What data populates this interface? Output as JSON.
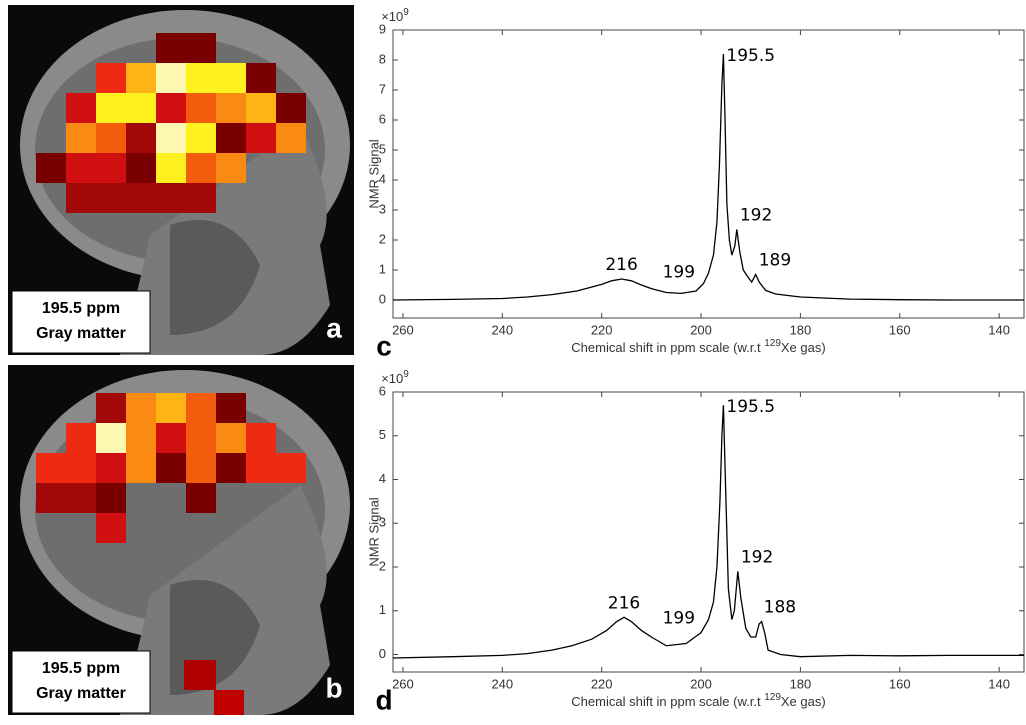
{
  "panels": [
    {
      "box": [
        "195.5 ppm",
        "Gray matter"
      ],
      "letter": "a"
    },
    {
      "box": [
        "195.5 ppm",
        "Gray matter"
      ],
      "letter": "b"
    }
  ],
  "chart_data": [
    {
      "type": "line",
      "letter": "c",
      "ylabel": "NMR Signal",
      "y_multiplier": {
        "base": "×10",
        "exponent": "9"
      },
      "xlabel": {
        "before": "Chemical shift in ppm scale (w.r.t ",
        "sup": "129",
        "after": "Xe gas)"
      },
      "xlim": [
        262,
        135
      ],
      "ylim": [
        -0.6,
        9
      ],
      "xticks": [
        260,
        240,
        220,
        200,
        180,
        160,
        140
      ],
      "yticks": [
        0,
        1,
        2,
        3,
        4,
        5,
        6,
        7,
        8,
        9
      ],
      "color": "#000000",
      "x": [
        262,
        250,
        240,
        235,
        230,
        225,
        220,
        218,
        216,
        214,
        212,
        210,
        207,
        204,
        201,
        199.5,
        198.5,
        197.5,
        196.8,
        196.3,
        195.8,
        195.5,
        195.2,
        194.8,
        194.3,
        193.8,
        193.2,
        192.8,
        192.2,
        191.5,
        190.5,
        189.8,
        189,
        188.3,
        187,
        185,
        180,
        170,
        160,
        150,
        140,
        135
      ],
      "values": [
        0,
        0.02,
        0.05,
        0.1,
        0.18,
        0.3,
        0.52,
        0.64,
        0.7,
        0.64,
        0.5,
        0.38,
        0.25,
        0.22,
        0.3,
        0.55,
        0.9,
        1.5,
        2.6,
        4.5,
        7.2,
        8.2,
        6.2,
        3.2,
        2.0,
        1.5,
        1.8,
        2.35,
        1.6,
        1.0,
        0.75,
        0.6,
        0.85,
        0.6,
        0.32,
        0.2,
        0.1,
        0.03,
        0.01,
        0,
        0,
        0
      ],
      "annotations": [
        {
          "text": "216",
          "x": 216,
          "y": 0.7
        },
        {
          "text": "199",
          "x": 200,
          "y": 0.45
        },
        {
          "text": "195.5",
          "x": 195.5,
          "y": 8.2
        },
        {
          "text": "192",
          "x": 192.8,
          "y": 2.35
        },
        {
          "text": "189",
          "x": 189,
          "y": 0.85
        }
      ]
    },
    {
      "type": "line",
      "letter": "d",
      "ylabel": "NMR Signal",
      "y_multiplier": {
        "base": "×10",
        "exponent": "9"
      },
      "xlabel": {
        "before": "Chemical shift in ppm scale (w.r.t ",
        "sup": "129",
        "after": "Xe gas)"
      },
      "xlim": [
        262,
        135
      ],
      "ylim": [
        -0.4,
        6
      ],
      "xticks": [
        260,
        240,
        220,
        200,
        180,
        160,
        140
      ],
      "yticks": [
        0,
        1,
        2,
        3,
        4,
        5,
        6
      ],
      "color": "#000000",
      "x": [
        262,
        250,
        240,
        235,
        230,
        226,
        222,
        219,
        217,
        215.5,
        214,
        212,
        210,
        207,
        203,
        200,
        198.5,
        197.5,
        196.8,
        196.2,
        195.8,
        195.5,
        195.1,
        194.5,
        193.8,
        193.3,
        192.6,
        192,
        191,
        190,
        189,
        188.3,
        187.8,
        187.2,
        186.5,
        184,
        180,
        170,
        160,
        150,
        140,
        135
      ],
      "values": [
        -0.08,
        -0.05,
        -0.02,
        0.02,
        0.1,
        0.2,
        0.35,
        0.55,
        0.75,
        0.85,
        0.75,
        0.55,
        0.4,
        0.2,
        0.25,
        0.5,
        0.8,
        1.2,
        2.0,
        3.5,
        5.0,
        5.7,
        4.0,
        1.5,
        0.8,
        1.0,
        1.9,
        1.3,
        0.6,
        0.4,
        0.4,
        0.7,
        0.75,
        0.5,
        0.1,
        0,
        -0.05,
        -0.02,
        -0.03,
        -0.02,
        -0.02,
        -0.02
      ],
      "annotations": [
        {
          "text": "216",
          "x": 215.5,
          "y": 0.85
        },
        {
          "text": "199",
          "x": 200,
          "y": 0.5
        },
        {
          "text": "195.5",
          "x": 195.5,
          "y": 5.7
        },
        {
          "text": "192",
          "x": 192.6,
          "y": 1.9
        },
        {
          "text": "188",
          "x": 188,
          "y": 0.75
        }
      ]
    }
  ]
}
